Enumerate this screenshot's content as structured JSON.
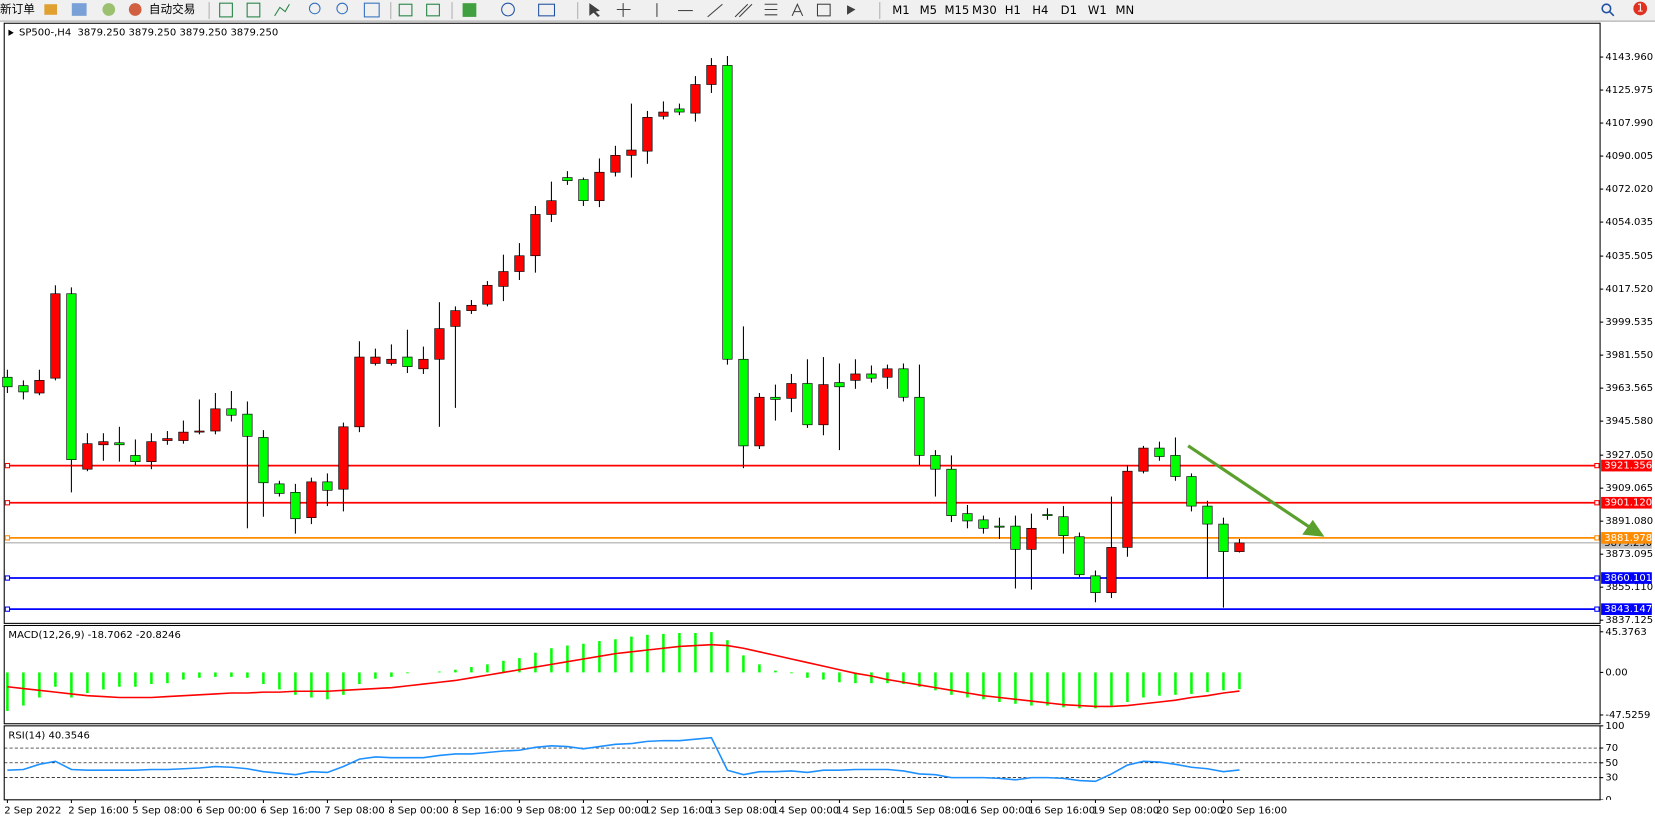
{
  "toolbar": {
    "new_order": "新订单",
    "auto_trading": "自动交易",
    "timeframes": [
      "M1",
      "M5",
      "M15",
      "M30",
      "H1",
      "H4",
      "D1",
      "W1",
      "MN"
    ],
    "notifications": 1
  },
  "chart_data": [
    {
      "type": "candlestick",
      "title": "SP500-,H4",
      "subtitle": "3879.250 3879.250 3879.250 3879.250",
      "up_color": "#ff0000",
      "down_color": "#00ff00",
      "wick_color": "#000000",
      "categories": [
        "2 Sep 2022",
        null,
        null,
        null,
        "2 Sep 16:00",
        null,
        null,
        null,
        "5 Sep 08:00",
        null,
        null,
        null,
        "6 Sep 00:00",
        null,
        null,
        null,
        "6 Sep 16:00",
        null,
        null,
        null,
        "7 Sep 08:00",
        null,
        null,
        null,
        "8 Sep 00:00",
        null,
        null,
        null,
        "8 Sep 16:00",
        null,
        null,
        null,
        "9 Sep 08:00",
        null,
        null,
        null,
        "12 Sep 00:00",
        null,
        null,
        null,
        "12 Sep 16:00",
        null,
        null,
        null,
        "13 Sep 08:00",
        null,
        null,
        null,
        "14 Sep 00:00",
        null,
        null,
        null,
        "14 Sep 16:00",
        null,
        null,
        null,
        "15 Sep 08:00",
        null,
        null,
        null,
        "16 Sep 00:00",
        null,
        null,
        null,
        "16 Sep 16:00",
        null,
        null,
        null,
        "19 Sep 08:00",
        null,
        null,
        null,
        "20 Sep 00:00",
        null,
        null,
        null,
        "20 Sep 16:00",
        null
      ],
      "open": [
        3969.5,
        3964.9,
        3960.9,
        3969.0,
        4015.0,
        3919.4,
        3932.7,
        3933.8,
        3926.9,
        3923.5,
        3935.0,
        3935.0,
        3939.6,
        3940.2,
        3952.3,
        3949.4,
        3936.7,
        3911.4,
        3906.8,
        3893.0,
        3912.5,
        3908.5,
        3942.5,
        3977.0,
        3977.0,
        3980.5,
        3974.1,
        3979.3,
        3997.2,
        4005.8,
        4009.3,
        4019.0,
        4027.1,
        4035.7,
        4058.2,
        4078.3,
        4077.2,
        4065.7,
        4081.2,
        4090.4,
        4092.7,
        4111.7,
        4115.7,
        4113.4,
        4129.0,
        4139.4,
        3979.3,
        3932.1,
        3958.6,
        3958.0,
        3966.1,
        3943.6,
        3966.6,
        3967.8,
        3971.3,
        3969.5,
        3974.1,
        3958.6,
        3926.9,
        3919.4,
        3895.2,
        3891.8,
        3888.4,
        3888.4,
        3875.7,
        3894.7,
        3893.5,
        3882.6,
        3861.3,
        3852.1,
        3876.8,
        3918.3,
        3930.9,
        3926.9,
        3915.4,
        3899.3,
        3889.5,
        3874.5
      ],
      "high": [
        3973.6,
        3967.8,
        3973.6,
        4019.6,
        4018.5,
        3939.0,
        3939.0,
        3942.5,
        3935.6,
        3939.0,
        3940.2,
        3945.9,
        3957.4,
        3960.9,
        3962.0,
        3956.3,
        3940.7,
        3913.1,
        3911.4,
        3914.8,
        3917.1,
        3944.8,
        3989.1,
        3985.1,
        3987.4,
        3995.4,
        3986.2,
        4010.4,
        4008.1,
        4011.6,
        4021.9,
        4036.3,
        4042.6,
        4062.8,
        4076.1,
        4081.8,
        4078.3,
        4088.7,
        4095.6,
        4118.6,
        4114.6,
        4119.8,
        4118.6,
        4133.6,
        4143.4,
        4144.5,
        3997.2,
        3960.9,
        3965.5,
        3971.3,
        3979.3,
        3980.5,
        3977.0,
        3979.3,
        3975.9,
        3976.4,
        3977.0,
        3976.4,
        3929.8,
        3926.9,
        3899.9,
        3894.1,
        3893.0,
        3894.1,
        3895.2,
        3898.1,
        3899.3,
        3884.9,
        3864.2,
        3904.5,
        3921.7,
        3932.1,
        3934.4,
        3936.7,
        3917.1,
        3902.2,
        3893.0,
        3881.4
      ],
      "low": [
        3960.9,
        3957.4,
        3959.7,
        3967.8,
        3906.8,
        3918.3,
        3924.0,
        3923.5,
        3921.7,
        3919.4,
        3932.7,
        3933.3,
        3938.4,
        3938.4,
        3945.4,
        3887.2,
        3893.5,
        3904.5,
        3884.3,
        3889.5,
        3899.3,
        3896.4,
        3939.6,
        3975.9,
        3975.9,
        3971.8,
        3971.3,
        3942.5,
        3952.8,
        4004.0,
        4008.1,
        4011.0,
        4022.5,
        4026.5,
        4054.1,
        4074.3,
        4062.8,
        4062.2,
        4078.9,
        4078.3,
        4085.8,
        4110.0,
        4112.3,
        4108.8,
        4124.4,
        3976.4,
        3920.0,
        3930.4,
        3945.9,
        3950.5,
        3941.9,
        3937.9,
        3929.8,
        3963.2,
        3966.6,
        3963.2,
        3956.3,
        3921.7,
        3904.5,
        3890.6,
        3887.2,
        3884.3,
        3881.4,
        3854.4,
        3853.8,
        3891.8,
        3873.4,
        3860.7,
        3846.9,
        3849.2,
        3871.7,
        3917.1,
        3924.0,
        3913.1,
        3896.4,
        3859.6,
        3844.0,
        3874.0
      ],
      "close": [
        3964.3,
        3961.5,
        3967.8,
        4015.0,
        3924.6,
        3933.3,
        3934.4,
        3932.7,
        3923.5,
        3934.4,
        3936.1,
        3939.6,
        3940.2,
        3952.3,
        3948.8,
        3937.3,
        3912.0,
        3906.2,
        3892.4,
        3912.5,
        3907.9,
        3942.5,
        3980.5,
        3980.5,
        3979.3,
        3975.3,
        3979.3,
        3996.0,
        4005.8,
        4008.7,
        4019.6,
        4027.1,
        4035.7,
        4058.2,
        4065.7,
        4076.6,
        4065.7,
        4081.2,
        4090.4,
        4093.3,
        4111.1,
        4114.0,
        4114.0,
        4129.0,
        4139.4,
        3979.3,
        3932.1,
        3958.6,
        3957.4,
        3966.1,
        3943.6,
        3965.5,
        3964.3,
        3971.3,
        3969.0,
        3974.1,
        3958.6,
        3926.9,
        3919.4,
        3894.1,
        3891.2,
        3887.2,
        3887.8,
        3875.7,
        3887.2,
        3894.1,
        3883.2,
        3861.9,
        3852.1,
        3876.8,
        3918.3,
        3930.9,
        3926.3,
        3915.4,
        3899.3,
        3889.5,
        3874.5,
        3879.25
      ],
      "ylim": [
        3835.4,
        4162.38
      ],
      "yticks": [
        {
          "value": 4143.96,
          "label": "4143.960"
        },
        4125.975,
        {
          "value": 4107.99,
          "label": "4107.990"
        },
        4090.005,
        {
          "value": 4072.02,
          "label": "4072.020"
        },
        4054.035,
        4035.505,
        {
          "value": 4017.52,
          "label": "4017.520"
        },
        3999.535,
        {
          "value": 3981.55,
          "label": "3981.550"
        },
        3963.565,
        {
          "value": 3945.58,
          "label": "3945.580"
        },
        {
          "value": 3927.05,
          "label": "3927.050"
        },
        3909.065,
        {
          "value": 3891.08,
          "label": "3891.080"
        },
        3873.095,
        {
          "value": 3855.11,
          "label": "3855.110"
        },
        3837.125
      ],
      "last_price": {
        "value": 3879.25,
        "label": "3879.250",
        "color": "#c0c0c0"
      },
      "hlines": [
        {
          "value": 3921.356,
          "color": "#ff0000"
        },
        {
          "value": 3901.12,
          "label": "3901.120",
          "color": "#ff0000"
        },
        {
          "value": 3881.978,
          "color": "#ff8c00"
        },
        {
          "value": 3860.101,
          "color": "#0000ff"
        },
        {
          "value": 3843.147,
          "color": "#0000ff"
        }
      ]
    },
    {
      "type": "macd",
      "title": "MACD(12,26,9) -18.7062 -20.8246",
      "color": "#00ff00",
      "signal_color": "#ff0000",
      "values": [
        -43,
        -37,
        -28,
        -16,
        -28,
        -23,
        -19,
        -16,
        -16,
        -13,
        -12,
        -8,
        -6,
        -5,
        -5,
        -6,
        -13,
        -19,
        -25,
        -28,
        -30,
        -25,
        -13,
        -7,
        -5,
        -1,
        0,
        1,
        3,
        6,
        9,
        13,
        16,
        22,
        27,
        30,
        32,
        35,
        37,
        40,
        42,
        43,
        44,
        44,
        45,
        36,
        19,
        9,
        2,
        -1,
        -6,
        -8,
        -11,
        -12,
        -12,
        -12,
        -13,
        -16,
        -20,
        -25,
        -28,
        -30,
        -33,
        -35,
        -37,
        -37,
        -39,
        -40,
        -40,
        -37,
        -33,
        -28,
        -26,
        -25,
        -24,
        -22,
        -20,
        -18.7062
      ],
      "signal": [
        -16,
        -18,
        -20,
        -22,
        -24,
        -26,
        -27,
        -28,
        -28,
        -28,
        -27,
        -26,
        -25,
        -24,
        -23,
        -23,
        -22,
        -22,
        -21,
        -21,
        -21,
        -20,
        -19,
        -18,
        -17,
        -15,
        -13,
        -11,
        -9,
        -6,
        -3,
        0,
        3,
        6,
        9,
        12,
        15,
        18,
        21,
        23,
        25,
        27,
        29,
        30,
        31,
        30,
        27,
        23,
        19,
        15,
        11,
        7,
        3,
        -1,
        -4,
        -8,
        -11,
        -14,
        -17,
        -20,
        -23,
        -26,
        -28,
        -30,
        -32,
        -34,
        -36,
        -37,
        -38,
        -38,
        -37,
        -35,
        -33,
        -31,
        -28,
        -26,
        -23,
        -20.8246
      ],
      "ylim": [
        -57.3,
        52.4
      ],
      "yticks": [
        45.3763,
        {
          "value": 0,
          "label": "0.00"
        },
        -47.5259
      ]
    },
    {
      "type": "line",
      "title": "RSI(14) 40.3546",
      "color": "#1e90ff",
      "grid": "dashed",
      "values": [
        40,
        41,
        48,
        52,
        41,
        40,
        40,
        40,
        40,
        41,
        41,
        42,
        43,
        45,
        44,
        42,
        38,
        36,
        34,
        38,
        37,
        45,
        55,
        58,
        57,
        57,
        57,
        60,
        62,
        62,
        64,
        66,
        67,
        71,
        73,
        72,
        69,
        72,
        75,
        76,
        79,
        80,
        80,
        82,
        84,
        40,
        34,
        38,
        38,
        39,
        37,
        40,
        40,
        41,
        41,
        41,
        39,
        35,
        34,
        30,
        30,
        30,
        29,
        27,
        30,
        30,
        29,
        26,
        25,
        35,
        47,
        52,
        51,
        48,
        44,
        42,
        38,
        40.3546
      ],
      "ylim": [
        0,
        100
      ],
      "yticks": [
        100,
        70,
        50,
        30,
        0
      ]
    }
  ]
}
